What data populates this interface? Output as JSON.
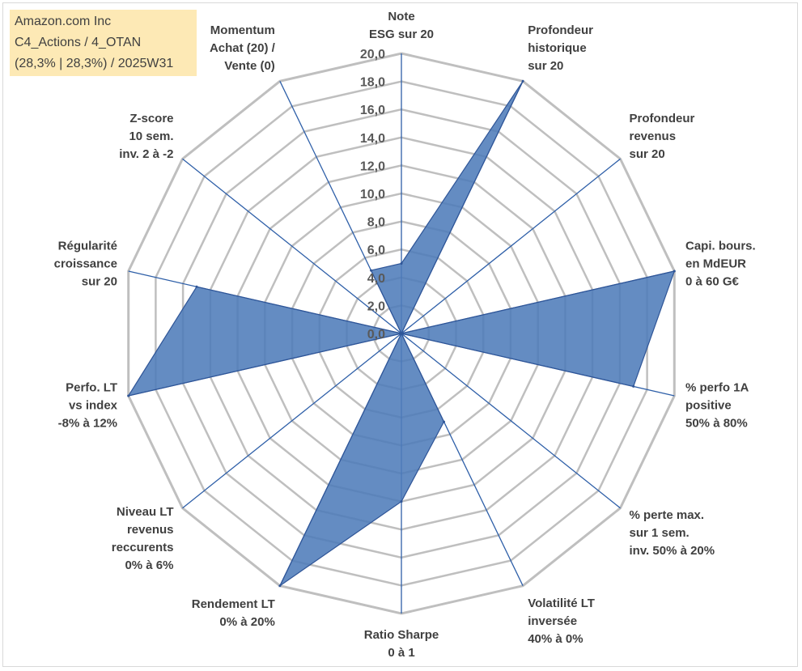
{
  "info": {
    "line1": "Amazon.com Inc",
    "line2": "C4_Actions / 4_OTAN",
    "line3": "(28,3% | 28,3%) / 2025W31"
  },
  "colors": {
    "grid": "#bfbfbf",
    "spoke": "#2e5fa8",
    "fill": "#4f7cba",
    "stroke": "#2f5597"
  },
  "chart_data": {
    "type": "radar",
    "title": "",
    "rlim": [
      0,
      20
    ],
    "ticks": [
      "0,0",
      "2,0",
      "4,0",
      "6,0",
      "8,0",
      "10,0",
      "12,0",
      "14,0",
      "16,0",
      "18,0",
      "20,0"
    ],
    "tick_values": [
      0,
      2,
      4,
      6,
      8,
      10,
      12,
      14,
      16,
      18,
      20
    ],
    "axes": [
      {
        "lines": [
          "Note",
          "ESG sur 20"
        ]
      },
      {
        "lines": [
          "Profondeur",
          "historique",
          "sur 20"
        ]
      },
      {
        "lines": [
          "Profondeur",
          "revenus",
          "sur 20"
        ]
      },
      {
        "lines": [
          "Capi. bours.",
          "en MdEUR",
          "0 à 60 G€"
        ]
      },
      {
        "lines": [
          "% perfo 1A",
          "positive",
          "50% à 80%"
        ]
      },
      {
        "lines": [
          "% perte max.",
          "sur 1 sem.",
          "inv. 50% à 20%"
        ]
      },
      {
        "lines": [
          "Volatilité LT",
          "inversée",
          "40% à 0%"
        ]
      },
      {
        "lines": [
          "Ratio Sharpe",
          "0 à 1"
        ]
      },
      {
        "lines": [
          "Rendement LT",
          "0% à 20%"
        ]
      },
      {
        "lines": [
          "Niveau LT",
          "revenus",
          "reccurents",
          "0% à 6%"
        ]
      },
      {
        "lines": [
          "Perfo. LT",
          "vs index",
          "-8% à 12%"
        ]
      },
      {
        "lines": [
          "Régularité",
          "croissance",
          "sur 20"
        ]
      },
      {
        "lines": [
          "Z-score",
          "10 sem.",
          "inv. 2 à -2"
        ]
      },
      {
        "lines": [
          "Momentum",
          "Achat (20) /",
          "Vente (0)"
        ]
      }
    ],
    "series": [
      {
        "values": [
          5.0,
          20.0,
          0.0,
          20.0,
          17.0,
          0.0,
          7.0,
          12.0,
          20.0,
          0.0,
          20.0,
          15.0,
          0.0,
          5.0
        ]
      }
    ]
  }
}
